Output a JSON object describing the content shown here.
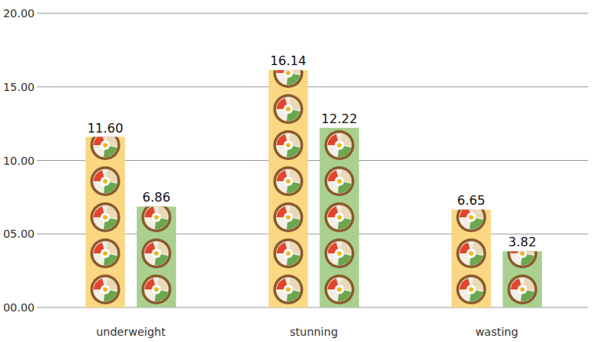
{
  "chart_data": {
    "type": "bar",
    "categories": [
      "underweight",
      "stunning",
      "wasting"
    ],
    "series": [
      {
        "color": "#fad782",
        "values": [
          11.6,
          16.14,
          6.65
        ],
        "value_labels": [
          "11.60",
          "16.14",
          "6.65"
        ]
      },
      {
        "color": "#a9d08e",
        "values": [
          6.86,
          12.22,
          3.82
        ],
        "value_labels": [
          "6.86",
          "12.22",
          "3.82"
        ]
      }
    ],
    "ylim": [
      0,
      20
    ],
    "yticks": [
      {
        "value": 0,
        "label": "00.00"
      },
      {
        "value": 5,
        "label": "05.00"
      },
      {
        "value": 10,
        "label": "10.00"
      },
      {
        "value": 15,
        "label": "15.00"
      },
      {
        "value": 20,
        "label": "20.00"
      }
    ],
    "grid": true,
    "data_labels": true
  }
}
